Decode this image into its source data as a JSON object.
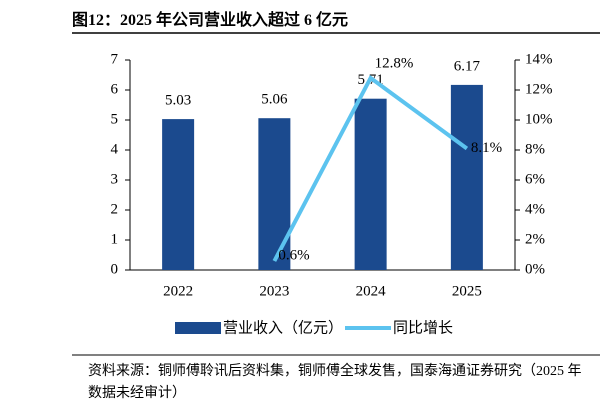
{
  "chart_data": {
    "type": "bar-line",
    "title": "图12：2025 年公司营业收入超过 6 亿元",
    "categories": [
      "2022",
      "2023",
      "2024",
      "2025"
    ],
    "series": [
      {
        "name": "营业收入（亿元）",
        "type": "bar",
        "color": "#1b4a8e",
        "values": [
          5.03,
          5.06,
          5.71,
          6.17
        ]
      },
      {
        "name": "同比增长",
        "type": "line",
        "axis": "y2",
        "color": "#5cc3ef",
        "values": [
          null,
          0.6,
          12.8,
          8.1
        ],
        "value_labels": [
          null,
          "0.6%",
          "12.8%",
          "8.1%"
        ]
      }
    ],
    "ylim": [
      0,
      7
    ],
    "yticks": [
      0,
      1,
      2,
      3,
      4,
      5,
      6,
      7
    ],
    "y2lim": [
      0,
      14
    ],
    "y2ticks": [
      {
        "value": 0,
        "label": "0%"
      },
      {
        "value": 2,
        "label": "2%"
      },
      {
        "value": 4,
        "label": "4%"
      },
      {
        "value": 6,
        "label": "6%"
      },
      {
        "value": 8,
        "label": "8%"
      },
      {
        "value": 10,
        "label": "10%"
      },
      {
        "value": 12,
        "label": "12%"
      },
      {
        "value": 14,
        "label": "14%"
      }
    ],
    "legend": "bottom",
    "source": "资料来源：铜师傅聆讯后资料集，铜师傅全球发售，国泰海通证券研究（2025 年数据未经审计）"
  }
}
